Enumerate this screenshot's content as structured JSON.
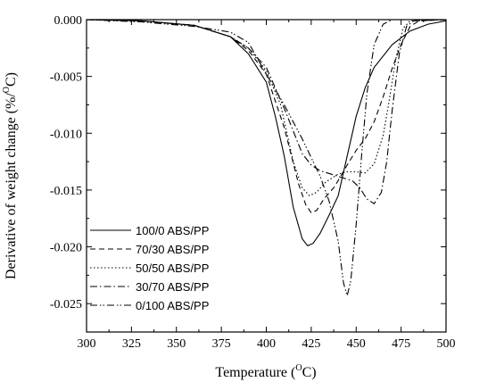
{
  "chart_data": {
    "type": "line",
    "xlabel": "Temperature (",
    "xlabel_sup": "O",
    "xlabel_end": "C)",
    "ylabel": "Derivative of weight change (%/",
    "ylabel_sup": "O",
    "ylabel_end": "C)",
    "xlim": [
      300,
      500
    ],
    "ylim": [
      -0.0275,
      0.0
    ],
    "x_ticks": [
      300,
      325,
      350,
      375,
      400,
      425,
      450,
      475,
      500
    ],
    "x_tick_labels": [
      "300",
      "325",
      "350",
      "375",
      "400",
      "425",
      "450",
      "475",
      "500"
    ],
    "y_ticks": [
      0.0,
      -0.005,
      -0.01,
      -0.015,
      -0.02,
      -0.025
    ],
    "y_tick_labels": [
      "0.000",
      "-0.005",
      "-0.010",
      "-0.015",
      "-0.020",
      "-0.025"
    ],
    "grid": false,
    "legend_placement": "bottom-left",
    "series": [
      {
        "name": "100/0 ABS/PP",
        "dash": "",
        "points": [
          [
            300,
            0
          ],
          [
            330,
            -0.0001
          ],
          [
            360,
            -0.0005
          ],
          [
            380,
            -0.0015
          ],
          [
            390,
            -0.003
          ],
          [
            400,
            -0.0055
          ],
          [
            405,
            -0.0085
          ],
          [
            410,
            -0.012
          ],
          [
            415,
            -0.0165
          ],
          [
            420,
            -0.0193
          ],
          [
            423,
            -0.0199
          ],
          [
            426,
            -0.0197
          ],
          [
            430,
            -0.0188
          ],
          [
            435,
            -0.0172
          ],
          [
            440,
            -0.0155
          ],
          [
            445,
            -0.012
          ],
          [
            450,
            -0.0085
          ],
          [
            455,
            -0.006
          ],
          [
            460,
            -0.0042
          ],
          [
            470,
            -0.0022
          ],
          [
            480,
            -0.001
          ],
          [
            490,
            -0.0004
          ],
          [
            500,
            -0.0001
          ]
        ]
      },
      {
        "name": "70/30 ABS/PP",
        "dash": "6,4",
        "points": [
          [
            300,
            0
          ],
          [
            330,
            -0.0001
          ],
          [
            360,
            -0.0005
          ],
          [
            380,
            -0.0015
          ],
          [
            390,
            -0.0027
          ],
          [
            400,
            -0.0048
          ],
          [
            410,
            -0.0095
          ],
          [
            418,
            -0.0145
          ],
          [
            422,
            -0.0163
          ],
          [
            425,
            -0.017
          ],
          [
            428,
            -0.0168
          ],
          [
            432,
            -0.0158
          ],
          [
            438,
            -0.0147
          ],
          [
            445,
            -0.0128
          ],
          [
            450,
            -0.0115
          ],
          [
            455,
            -0.0105
          ],
          [
            460,
            -0.009
          ],
          [
            465,
            -0.0068
          ],
          [
            470,
            -0.0043
          ],
          [
            475,
            -0.0022
          ],
          [
            480,
            -0.0006
          ],
          [
            485,
            -0.0001
          ],
          [
            500,
            0
          ]
        ]
      },
      {
        "name": "50/50 ABS/PP",
        "dash": "1.5,2.5",
        "points": [
          [
            300,
            0
          ],
          [
            330,
            -0.0001
          ],
          [
            360,
            -0.0005
          ],
          [
            380,
            -0.0015
          ],
          [
            390,
            -0.0025
          ],
          [
            400,
            -0.0045
          ],
          [
            408,
            -0.0075
          ],
          [
            415,
            -0.0125
          ],
          [
            420,
            -0.0148
          ],
          [
            424,
            -0.0155
          ],
          [
            428,
            -0.0152
          ],
          [
            433,
            -0.0143
          ],
          [
            440,
            -0.0136
          ],
          [
            445,
            -0.0134
          ],
          [
            450,
            -0.0134
          ],
          [
            455,
            -0.0135
          ],
          [
            460,
            -0.0127
          ],
          [
            465,
            -0.0102
          ],
          [
            468,
            -0.0075
          ],
          [
            472,
            -0.0035
          ],
          [
            476,
            -0.0008
          ],
          [
            480,
            -0.0001
          ],
          [
            500,
            0
          ]
        ]
      },
      {
        "name": "30/70 ABS/PP",
        "dash": "8,3,1.5,3",
        "points": [
          [
            300,
            0
          ],
          [
            330,
            -0.0001
          ],
          [
            360,
            -0.0005
          ],
          [
            380,
            -0.0015
          ],
          [
            390,
            -0.0025
          ],
          [
            400,
            -0.0042
          ],
          [
            410,
            -0.0078
          ],
          [
            420,
            -0.0118
          ],
          [
            425,
            -0.0128
          ],
          [
            430,
            -0.0133
          ],
          [
            440,
            -0.0138
          ],
          [
            448,
            -0.0142
          ],
          [
            452,
            -0.0148
          ],
          [
            456,
            -0.0158
          ],
          [
            460,
            -0.0162
          ],
          [
            464,
            -0.0152
          ],
          [
            467,
            -0.0125
          ],
          [
            470,
            -0.008
          ],
          [
            474,
            -0.003
          ],
          [
            478,
            -0.0006
          ],
          [
            482,
            -0.0001
          ],
          [
            500,
            0
          ]
        ]
      },
      {
        "name": "0/100 ABS/PP",
        "dash": "8,3,1.5,2,1.5,3",
        "points": [
          [
            300,
            0
          ],
          [
            330,
            -0.0002
          ],
          [
            360,
            -0.0006
          ],
          [
            380,
            -0.0011
          ],
          [
            390,
            -0.002
          ],
          [
            400,
            -0.0048
          ],
          [
            410,
            -0.0075
          ],
          [
            420,
            -0.0105
          ],
          [
            430,
            -0.0138
          ],
          [
            435,
            -0.016
          ],
          [
            440,
            -0.0195
          ],
          [
            443,
            -0.0232
          ],
          [
            445,
            -0.0243
          ],
          [
            447,
            -0.023
          ],
          [
            450,
            -0.018
          ],
          [
            453,
            -0.012
          ],
          [
            456,
            -0.0065
          ],
          [
            460,
            -0.0022
          ],
          [
            465,
            -0.0004
          ],
          [
            470,
            0
          ],
          [
            500,
            0
          ]
        ]
      }
    ]
  }
}
